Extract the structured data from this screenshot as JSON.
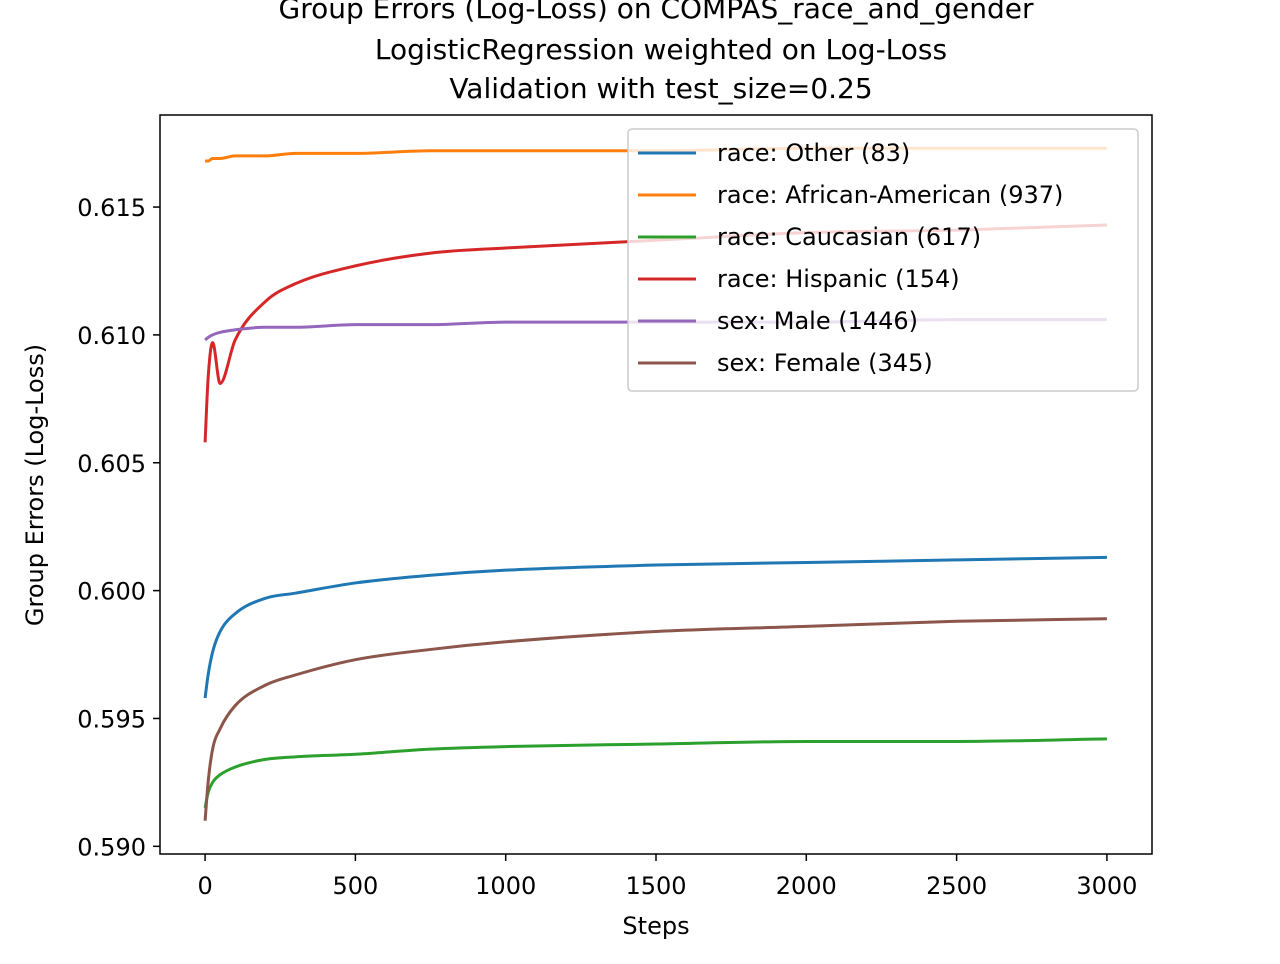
{
  "chart_data": {
    "type": "line",
    "title": [
      "Group Errors (Log-Loss) on COMPAS_race_and_gender",
      "LogisticRegression weighted on Log-Loss",
      "Validation with test_size=0.25"
    ],
    "xlabel": "Steps",
    "ylabel": "Group Errors (Log-Loss)",
    "xlim": [
      -150,
      3150
    ],
    "ylim": [
      0.5897,
      0.6186
    ],
    "xticks": [
      0,
      500,
      1000,
      1500,
      2000,
      2500,
      3000
    ],
    "xtick_labels": [
      "0",
      "500",
      "1000",
      "1500",
      "2000",
      "2500",
      "3000"
    ],
    "yticks": [
      0.59,
      0.595,
      0.6,
      0.605,
      0.61,
      0.615
    ],
    "ytick_labels": [
      "0.590",
      "0.595",
      "0.600",
      "0.605",
      "0.610",
      "0.615"
    ],
    "grid": false,
    "legend_position": "upper right",
    "x": [
      0,
      10,
      25,
      50,
      100,
      200,
      300,
      500,
      750,
      1000,
      1500,
      2000,
      2500,
      3000
    ],
    "series": [
      {
        "name": "race: Other  (83)",
        "color": "#1f77b4",
        "values": [
          0.5958,
          0.5967,
          0.5976,
          0.5984,
          0.5991,
          0.5997,
          0.5999,
          0.6003,
          0.6006,
          0.6008,
          0.601,
          0.6011,
          0.6012,
          0.6013
        ]
      },
      {
        "name": "race: African-American  (937)",
        "color": "#ff7f0e",
        "values": [
          0.6168,
          0.6168,
          0.6169,
          0.6169,
          0.617,
          0.617,
          0.6171,
          0.6171,
          0.6172,
          0.6172,
          0.6172,
          0.6173,
          0.6173,
          0.6173
        ]
      },
      {
        "name": "race: Caucasian  (617)",
        "color": "#2ca02c",
        "values": [
          0.5915,
          0.5921,
          0.5925,
          0.5928,
          0.5931,
          0.5934,
          0.5935,
          0.5936,
          0.5938,
          0.5939,
          0.594,
          0.5941,
          0.5941,
          0.5942
        ]
      },
      {
        "name": "race: Hispanic  (154)",
        "color": "#d62728",
        "values": [
          0.6058,
          0.6083,
          0.6097,
          0.6081,
          0.6098,
          0.6113,
          0.612,
          0.6127,
          0.6132,
          0.6134,
          0.6137,
          0.614,
          0.6141,
          0.6143
        ]
      },
      {
        "name": "sex: Male  (1446)",
        "color": "#9467bd",
        "values": [
          0.6098,
          0.6099,
          0.61,
          0.6101,
          0.6102,
          0.6103,
          0.6103,
          0.6104,
          0.6104,
          0.6105,
          0.6105,
          0.6105,
          0.6106,
          0.6106
        ]
      },
      {
        "name": "sex: Female  (345)",
        "color": "#8c564b",
        "values": [
          0.591,
          0.5925,
          0.5938,
          0.5946,
          0.5955,
          0.5963,
          0.5967,
          0.5973,
          0.5977,
          0.598,
          0.5984,
          0.5986,
          0.5988,
          0.5989
        ]
      }
    ]
  }
}
